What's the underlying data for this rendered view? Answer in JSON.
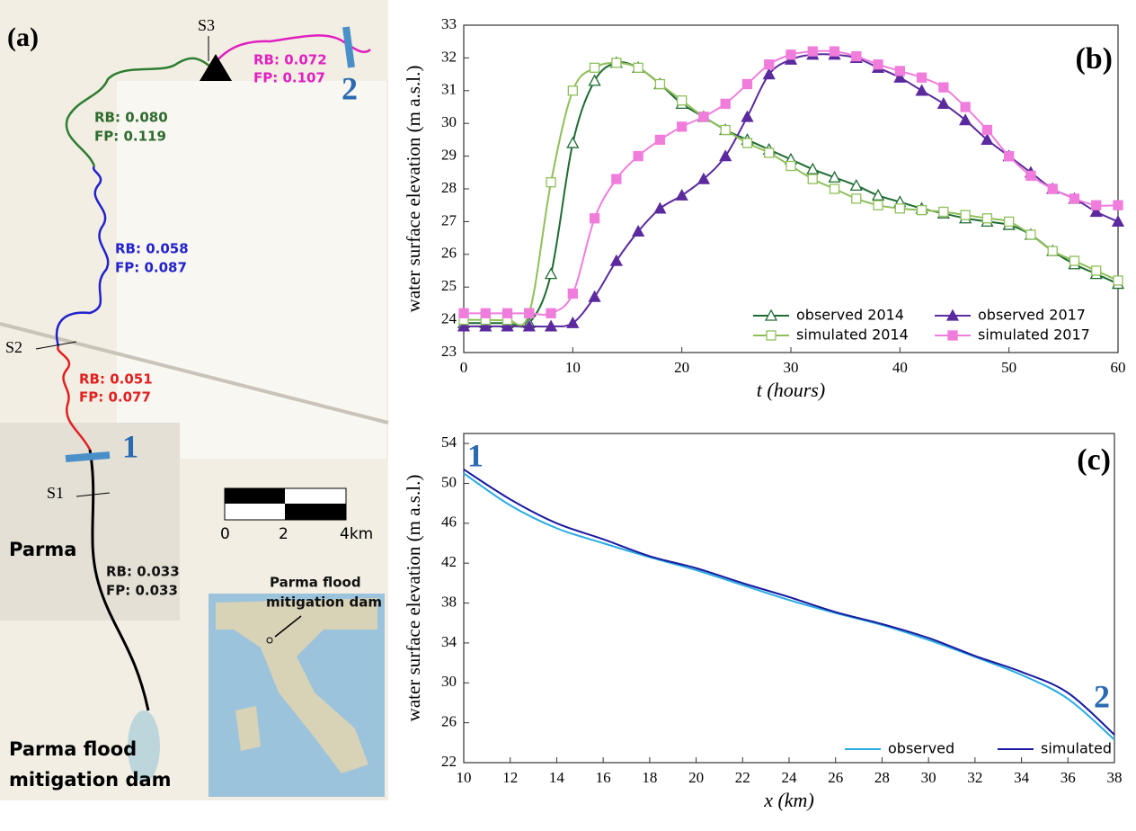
{
  "map": {
    "panel_label": "(a)",
    "sites": [
      "S1",
      "S2",
      "S3"
    ],
    "sections": [
      "1",
      "2"
    ],
    "reaches": [
      {
        "rb": "RB: 0.072",
        "fp": "FP: 0.107"
      },
      {
        "rb": "RB: 0.080",
        "fp": "FP: 0.119"
      },
      {
        "rb": "RB: 0.058",
        "fp": "FP: 0.087"
      },
      {
        "rb": "RB: 0.051",
        "fp": "FP: 0.077"
      },
      {
        "rb": "RB: 0.033",
        "fp": "FP: 0.033"
      }
    ],
    "city": "Parma",
    "dam_label": [
      "Parma flood",
      "mitigation dam"
    ],
    "inset_label": [
      "Parma flood",
      "mitigation dam"
    ],
    "scale": [
      "0",
      "2",
      "4km"
    ]
  },
  "chart_data": [
    {
      "type": "line",
      "panel_label": "(b)",
      "x_label": "t (hours)",
      "y_label": "water surface elevation  (m a.s.l.)",
      "xlim": [
        0,
        60
      ],
      "xticks": [
        0,
        10,
        20,
        30,
        40,
        50,
        60
      ],
      "ylim": [
        23,
        33
      ],
      "yticks": [
        23,
        24,
        25,
        26,
        27,
        28,
        29,
        30,
        31,
        32,
        33
      ],
      "legend": "lower right",
      "x": [
        0,
        2,
        4,
        6,
        8,
        10,
        12,
        14,
        16,
        18,
        20,
        22,
        24,
        26,
        28,
        30,
        32,
        34,
        36,
        38,
        40,
        42,
        44,
        46,
        48,
        50,
        52,
        54,
        56,
        58,
        60
      ],
      "series": [
        {
          "name": "observed 2014",
          "color": "#1e6b32",
          "marker": "triangle",
          "filled": false,
          "values": [
            23.9,
            23.9,
            23.9,
            23.9,
            25.4,
            29.4,
            31.3,
            31.85,
            31.7,
            31.2,
            30.6,
            30.2,
            29.8,
            29.5,
            29.2,
            28.9,
            28.6,
            28.35,
            28.1,
            27.8,
            27.6,
            27.4,
            27.25,
            27.1,
            27.0,
            26.9,
            26.6,
            26.1,
            25.7,
            25.4,
            25.1
          ]
        },
        {
          "name": "observed 2017",
          "color": "#5b2a9e",
          "marker": "triangle",
          "filled": true,
          "values": [
            23.8,
            23.8,
            23.8,
            23.8,
            23.8,
            23.9,
            24.7,
            25.8,
            26.7,
            27.4,
            27.8,
            28.3,
            29.0,
            30.2,
            31.5,
            31.95,
            32.1,
            32.1,
            32.0,
            31.7,
            31.4,
            31.0,
            30.6,
            30.1,
            29.5,
            29.0,
            28.5,
            28.0,
            27.7,
            27.3,
            27.0
          ]
        },
        {
          "name": "simulated 2014",
          "color": "#8fbf5a",
          "marker": "square",
          "filled": false,
          "values": [
            24.0,
            24.0,
            24.0,
            24.2,
            28.2,
            31.0,
            31.7,
            31.85,
            31.7,
            31.2,
            30.7,
            30.2,
            29.8,
            29.4,
            29.1,
            28.7,
            28.3,
            28.0,
            27.7,
            27.5,
            27.4,
            27.35,
            27.3,
            27.2,
            27.1,
            27.0,
            26.6,
            26.1,
            25.8,
            25.5,
            25.2
          ]
        },
        {
          "name": "simulated 2017",
          "color": "#f07ddc",
          "marker": "square",
          "filled": true,
          "values": [
            24.2,
            24.2,
            24.2,
            24.2,
            24.2,
            24.8,
            27.1,
            28.3,
            29.0,
            29.5,
            29.9,
            30.2,
            30.6,
            31.2,
            31.8,
            32.1,
            32.2,
            32.2,
            32.05,
            31.8,
            31.6,
            31.4,
            31.1,
            30.5,
            29.8,
            29.0,
            28.4,
            28.0,
            27.7,
            27.5,
            27.5
          ]
        }
      ]
    },
    {
      "type": "line",
      "panel_label": "(c)",
      "x_label": "x (km)",
      "y_label": "water surface elevation  (m a.s.l.)",
      "xlim": [
        10,
        38
      ],
      "xticks": [
        10,
        12,
        14,
        16,
        18,
        20,
        22,
        24,
        26,
        28,
        30,
        32,
        34,
        36,
        38
      ],
      "ylim": [
        22,
        55
      ],
      "yticks": [
        22,
        26,
        30,
        34,
        38,
        42,
        46,
        50,
        54
      ],
      "legend": "lower right",
      "annotations": [
        "1",
        "2"
      ],
      "x": [
        10,
        12,
        14,
        16,
        18,
        20,
        22,
        24,
        26,
        28,
        30,
        32,
        34,
        36,
        38
      ],
      "series": [
        {
          "name": "observed",
          "color": "#29abe2",
          "values": [
            51.0,
            47.8,
            45.5,
            44.0,
            42.6,
            41.3,
            39.8,
            38.3,
            37.0,
            35.8,
            34.3,
            32.6,
            30.8,
            28.4,
            24.3
          ]
        },
        {
          "name": "simulated",
          "color": "#1a1aa0",
          "values": [
            51.4,
            48.4,
            46.0,
            44.4,
            42.7,
            41.5,
            40.0,
            38.6,
            37.1,
            35.9,
            34.5,
            32.7,
            31.1,
            29.0,
            24.8
          ]
        }
      ]
    }
  ]
}
